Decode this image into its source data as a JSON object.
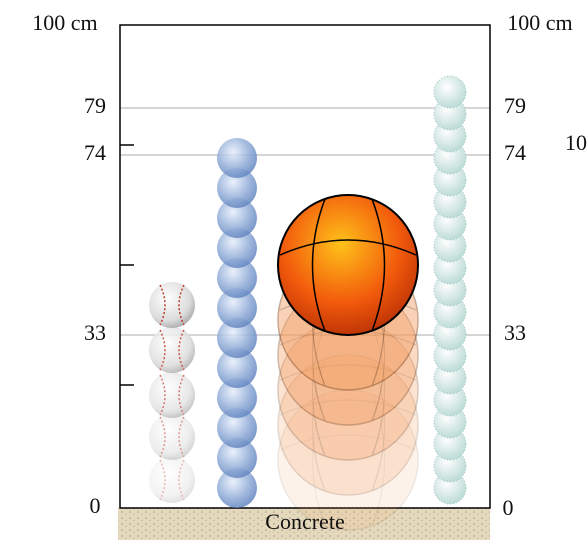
{
  "left_axis": {
    "top": "100 cm",
    "marks": [
      "79",
      "74",
      "33",
      "0"
    ]
  },
  "right_axis": {
    "top": "100 cm",
    "marks": [
      "79",
      "74",
      "33",
      "0"
    ]
  },
  "ground": "Concrete",
  "edge_text": "10"
}
